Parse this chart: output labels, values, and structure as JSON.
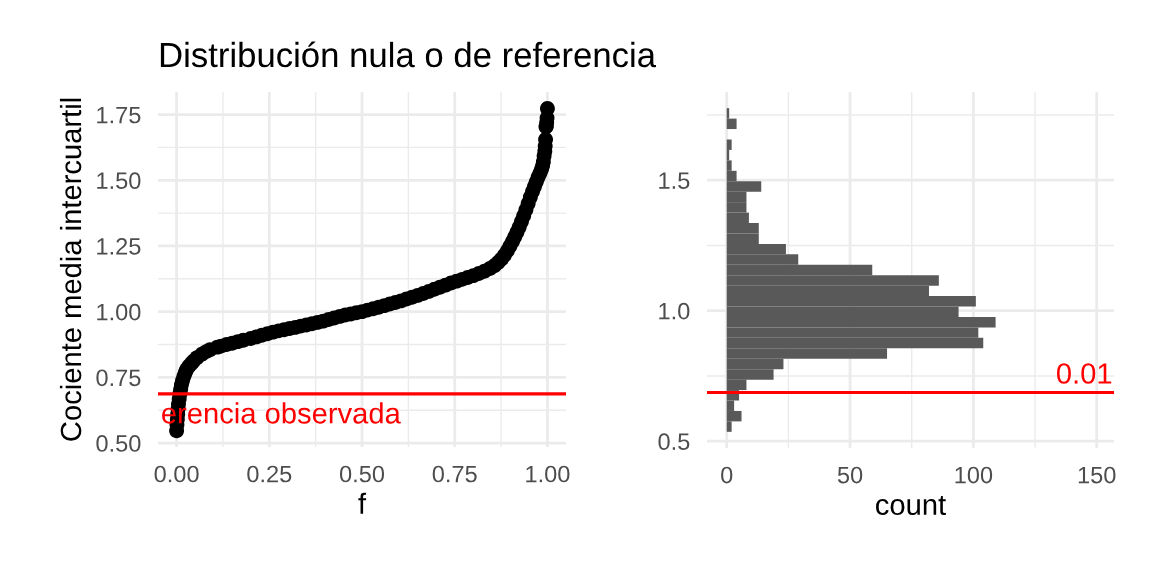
{
  "chart_data": [
    {
      "type": "scatter",
      "title": "Distribución nula o de referencia",
      "xlabel": "f",
      "ylabel": "Cociente media intercuartil",
      "x": [
        0.0,
        0.001,
        0.002,
        0.003,
        0.004,
        0.005,
        0.007,
        0.009,
        0.011,
        0.013,
        0.016,
        0.02,
        0.024,
        0.027,
        0.033,
        0.04,
        0.045,
        0.055,
        0.068,
        0.08,
        0.09,
        0.11,
        0.12,
        0.135,
        0.15,
        0.165,
        0.18,
        0.2,
        0.215,
        0.23,
        0.245,
        0.26,
        0.275,
        0.29,
        0.305,
        0.32,
        0.335,
        0.35,
        0.365,
        0.38,
        0.395,
        0.41,
        0.425,
        0.44,
        0.455,
        0.47,
        0.485,
        0.5,
        0.515,
        0.53,
        0.545,
        0.56,
        0.575,
        0.59,
        0.605,
        0.62,
        0.635,
        0.65,
        0.665,
        0.68,
        0.695,
        0.71,
        0.725,
        0.74,
        0.755,
        0.77,
        0.785,
        0.8,
        0.815,
        0.83,
        0.845,
        0.857,
        0.867,
        0.876,
        0.884,
        0.892,
        0.899,
        0.906,
        0.912,
        0.918,
        0.924,
        0.93,
        0.936,
        0.942,
        0.948,
        0.954,
        0.96,
        0.965,
        0.97,
        0.975,
        0.98,
        0.984,
        0.987,
        0.989,
        0.991,
        0.993,
        0.994,
        0.995,
        0.996,
        0.997,
        0.998,
        0.999,
        1.0
      ],
      "values": [
        0.547,
        0.57,
        0.59,
        0.61,
        0.63,
        0.648,
        0.668,
        0.688,
        0.705,
        0.722,
        0.738,
        0.755,
        0.77,
        0.78,
        0.792,
        0.803,
        0.811,
        0.825,
        0.838,
        0.848,
        0.855,
        0.865,
        0.869,
        0.875,
        0.88,
        0.886,
        0.891,
        0.898,
        0.904,
        0.91,
        0.916,
        0.922,
        0.927,
        0.931,
        0.936,
        0.94,
        0.945,
        0.949,
        0.954,
        0.959,
        0.964,
        0.97,
        0.976,
        0.982,
        0.987,
        0.991,
        0.996,
        1.0,
        1.006,
        1.011,
        1.017,
        1.023,
        1.029,
        1.035,
        1.041,
        1.048,
        1.055,
        1.062,
        1.069,
        1.077,
        1.085,
        1.093,
        1.101,
        1.109,
        1.116,
        1.123,
        1.13,
        1.137,
        1.145,
        1.154,
        1.164,
        1.175,
        1.187,
        1.2,
        1.215,
        1.232,
        1.25,
        1.268,
        1.285,
        1.303,
        1.322,
        1.343,
        1.365,
        1.388,
        1.412,
        1.436,
        1.458,
        1.476,
        1.494,
        1.512,
        1.528,
        1.542,
        1.555,
        1.57,
        1.592,
        1.61,
        1.63,
        1.655,
        1.704,
        1.706,
        1.72,
        1.737,
        1.773
      ],
      "color": "#000000",
      "marker": "circle",
      "xlim": [
        -0.05,
        1.05
      ],
      "xticks": [
        {
          "value": 0,
          "label": "0.00"
        },
        {
          "value": 0.125,
          "label": null
        },
        {
          "value": 0.25,
          "label": "0.25"
        },
        {
          "value": 0.375,
          "label": null
        },
        {
          "value": 0.5,
          "label": "0.50"
        },
        {
          "value": 0.625,
          "label": null
        },
        {
          "value": 0.75,
          "label": "0.75"
        },
        {
          "value": 0.875,
          "label": null
        },
        {
          "value": 1,
          "label": "1.00"
        }
      ],
      "ylim": [
        0.485,
        1.836
      ],
      "yticks": [
        {
          "value": 0.5,
          "label": "0.50"
        },
        {
          "value": 0.625,
          "label": null
        },
        {
          "value": 0.75,
          "label": "0.75"
        },
        {
          "value": 0.875,
          "label": null
        },
        {
          "value": 1,
          "label": "1.00"
        },
        {
          "value": 1.125,
          "label": null
        },
        {
          "value": 1.25,
          "label": "1.25"
        },
        {
          "value": 1.375,
          "label": null
        },
        {
          "value": 1.5,
          "label": "1.50"
        },
        {
          "value": 1.625,
          "label": null
        },
        {
          "value": 1.75,
          "label": "1.75"
        }
      ],
      "grid": true,
      "ref_lines": [
        {
          "axis": "y",
          "value": 0.687,
          "label": "erencia observada",
          "color": "#ff0000"
        }
      ]
    },
    {
      "type": "histogram",
      "orientation": "horizontal",
      "xlabel": "count",
      "bins": [
        0.536,
        0.576,
        0.616,
        0.656,
        0.696,
        0.736,
        0.776,
        0.816,
        0.856,
        0.896,
        0.936,
        0.976,
        1.016,
        1.056,
        1.096,
        1.136,
        1.176,
        1.216,
        1.256,
        1.296,
        1.336,
        1.376,
        1.416,
        1.456,
        1.496,
        1.536,
        1.576,
        1.616,
        1.656,
        1.696,
        1.736,
        1.776
      ],
      "values": [
        2,
        6,
        3,
        5,
        8,
        19,
        23,
        65,
        104,
        102,
        109,
        94,
        101,
        82,
        86,
        59,
        29,
        24,
        13,
        13,
        9,
        8,
        8,
        14,
        4,
        2,
        1,
        2,
        0,
        4,
        1
      ],
      "color": "#595959",
      "xlim": [
        -8,
        157
      ],
      "xticks": [
        0,
        {
          "value": 25,
          "label": null
        },
        50,
        {
          "value": 75,
          "label": null
        },
        100,
        {
          "value": 125,
          "label": null
        },
        150
      ],
      "ylim": [
        0.474,
        1.838
      ],
      "yticks": [
        {
          "value": 0.5,
          "label": "0.5"
        },
        {
          "value": 0.75,
          "label": null
        },
        {
          "value": 1,
          "label": "1.0"
        },
        {
          "value": 1.25,
          "label": null
        },
        {
          "value": 1.5,
          "label": "1.5"
        },
        {
          "value": 1.75,
          "label": null
        }
      ],
      "grid": true,
      "ref_lines": [
        {
          "axis": "y",
          "value": 0.687,
          "color": "#ff0000"
        }
      ],
      "annotations": [
        "0.01"
      ]
    }
  ]
}
